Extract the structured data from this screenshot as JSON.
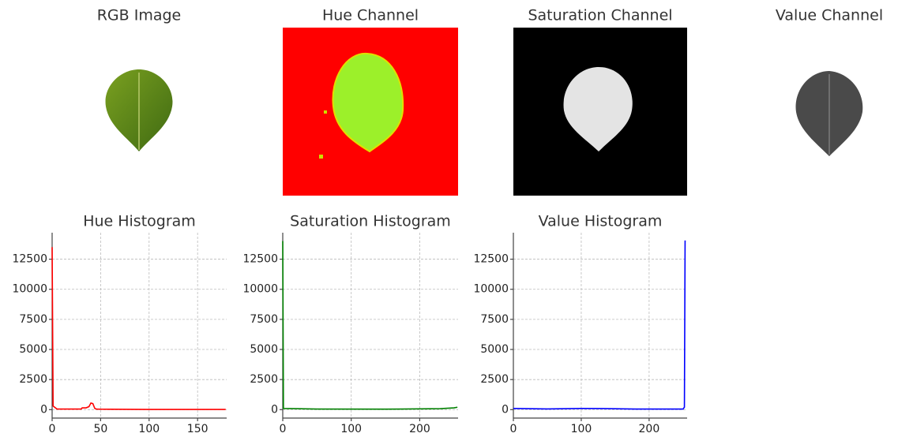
{
  "chart_data": [
    {
      "type": "image",
      "title": "RGB Image"
    },
    {
      "type": "image",
      "title": "Hue Channel"
    },
    {
      "type": "image",
      "title": "Saturation Channel"
    },
    {
      "type": "image",
      "title": "Value Channel"
    },
    {
      "type": "line",
      "title": "Hue Histogram",
      "grid": true,
      "xlim": [
        0,
        180
      ],
      "xticks": [
        0,
        50,
        100,
        150
      ],
      "ylim": [
        -700,
        14700
      ],
      "yticks": [
        0,
        2500,
        5000,
        7500,
        10000,
        12500
      ],
      "series": [
        {
          "color": "#ff0000",
          "x": [
            0,
            1,
            5,
            30,
            31,
            35,
            38,
            40,
            42,
            44,
            46,
            60,
            100,
            179
          ],
          "values": [
            13500,
            300,
            50,
            50,
            150,
            150,
            250,
            550,
            500,
            100,
            40,
            30,
            20,
            20
          ]
        }
      ]
    },
    {
      "type": "line",
      "title": "Saturation Histogram",
      "grid": true,
      "xlim": [
        0,
        256
      ],
      "xticks": [
        0,
        100,
        200
      ],
      "ylim": [
        -700,
        14700
      ],
      "yticks": [
        0,
        2500,
        5000,
        7500,
        10000,
        12500
      ],
      "series": [
        {
          "color": "#008000",
          "x": [
            0,
            1,
            50,
            150,
            230,
            250,
            255
          ],
          "values": [
            14000,
            100,
            50,
            40,
            80,
            150,
            200
          ]
        }
      ]
    },
    {
      "type": "line",
      "title": "Value Histogram",
      "grid": true,
      "xlim": [
        0,
        256
      ],
      "xticks": [
        0,
        100,
        200
      ],
      "ylim": [
        -700,
        14700
      ],
      "yticks": [
        0,
        2500,
        5000,
        7500,
        10000,
        12500
      ],
      "series": [
        {
          "color": "#0000ff",
          "x": [
            0,
            50,
            100,
            130,
            180,
            250,
            252,
            253,
            254
          ],
          "values": [
            100,
            60,
            100,
            90,
            50,
            50,
            200,
            14000,
            14000
          ]
        }
      ]
    }
  ]
}
